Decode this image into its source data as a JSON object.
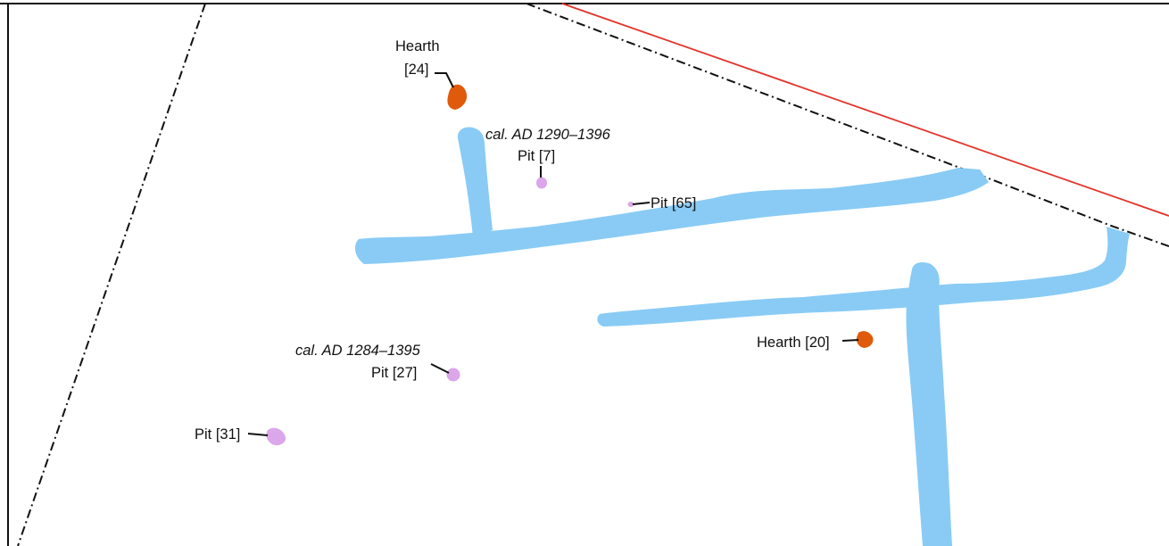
{
  "colors": {
    "ditch": "#89cbf5",
    "hearth": "#e05a0c",
    "pit": "#dba6ea",
    "boundary": "#111111",
    "red_line": "#e3342b",
    "background": "#ffffff"
  },
  "features": {
    "hearth_24": {
      "label_line1": "Hearth",
      "label_line2": "[24]"
    },
    "hearth_20": {
      "label": "Hearth [20]"
    },
    "pit_7": {
      "date": "cal. AD 1290–1396",
      "label": "Pit [7]"
    },
    "pit_65": {
      "label": "Pit [65]"
    },
    "pit_27": {
      "date": "cal. AD 1284–1395",
      "label": "Pit [27]"
    },
    "pit_31": {
      "label": "Pit [31]"
    }
  }
}
